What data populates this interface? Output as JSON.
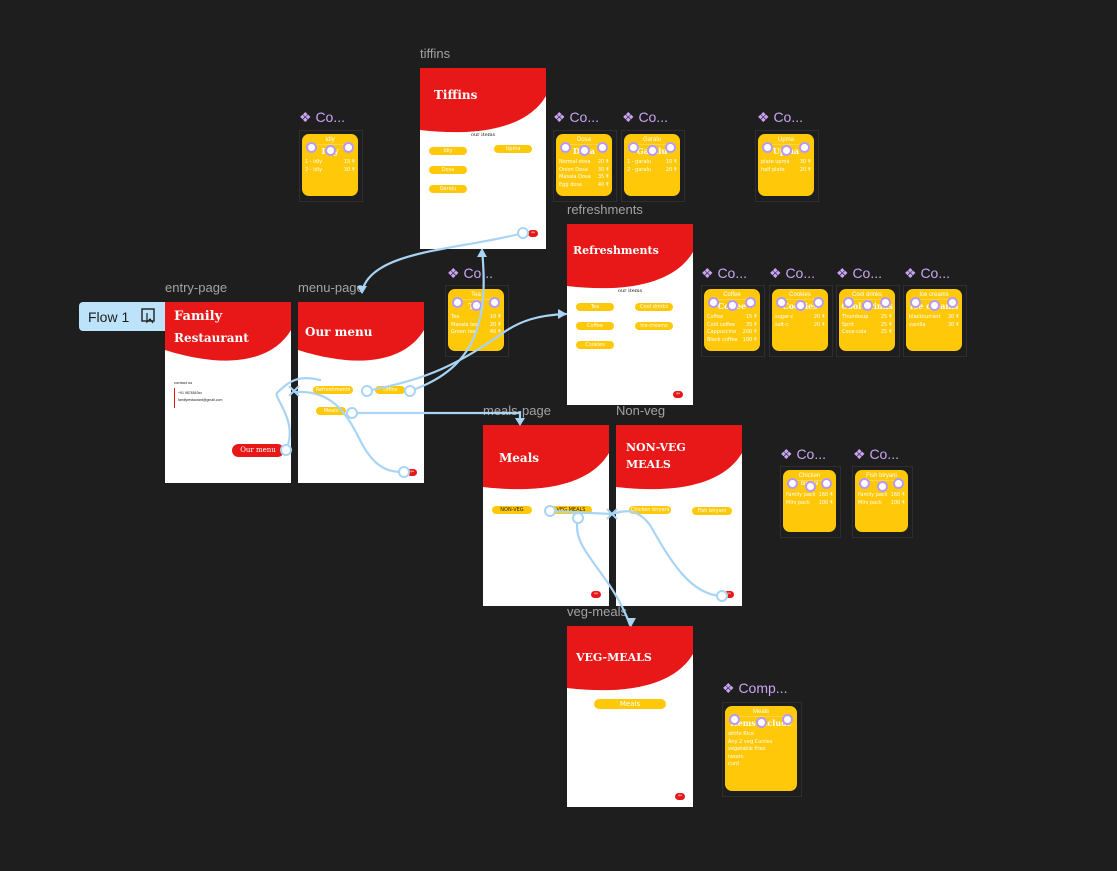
{
  "flow": {
    "label": "Flow 1"
  },
  "frame_labels": {
    "tiffins": "tiffins",
    "refreshments": "refreshments",
    "entry": "entry-page",
    "menu": "menu-page",
    "meals": "meals-page",
    "nonveg": "Non-veg",
    "veg": "veg-meals"
  },
  "entry": {
    "title_line1": "Family",
    "title_line2": "Restaurant",
    "contact_heading": "contact us",
    "phone": "+91 9876543xx",
    "email": "familyrestaurant@gmail.com",
    "menu_button": "Our menu"
  },
  "menu": {
    "title": "Our menu",
    "items": [
      "Refreshments",
      "Tiffins",
      "Meals"
    ]
  },
  "tiffins": {
    "title": "Tiffins",
    "subtitle": "our items",
    "items": [
      "Idly",
      "Upma",
      "Dosa",
      "Garalu"
    ]
  },
  "refreshments": {
    "title": "Refreshments",
    "subtitle": "our items",
    "items": [
      "Tea",
      "Cool drinks",
      "Coffee",
      "Ice-creams",
      "Cookies"
    ]
  },
  "meals": {
    "title": "Meals",
    "items": [
      "NON-VEG",
      "VEG MEALS"
    ]
  },
  "nonveg": {
    "title_line1": "NON-VEG",
    "title_line2": "MEALS",
    "items": [
      "Chicken biryani",
      "Fish biryani"
    ]
  },
  "veg": {
    "title": "VEG-MEALS",
    "item": "Meals"
  },
  "component_labels": {
    "short": "❖ Co...",
    "long": "❖ Comp..."
  },
  "components": {
    "idly": {
      "tab": "Idly",
      "title": "Idly",
      "rows": [
        [
          "1 - idly",
          "15 ₹"
        ],
        [
          "2 - idly",
          "30 ₹"
        ]
      ]
    },
    "dosa": {
      "tab": "Dosa",
      "title": "Dosa",
      "rows": [
        [
          "Normal dosa",
          "20 ₹"
        ],
        [
          "Onion Dosa",
          "30 ₹"
        ],
        [
          "Masala Dosa",
          "35 ₹"
        ],
        [
          "Egg dosa",
          "40 ₹"
        ]
      ]
    },
    "garalu": {
      "tab": "Garalu",
      "title": "Garalu",
      "rows": [
        [
          "1 - garalu",
          "10 ₹"
        ],
        [
          "2 - garalu",
          "20 ₹"
        ]
      ]
    },
    "upma": {
      "tab": "Upma",
      "title": "Upma",
      "rows": [
        [
          "plate upma",
          "30 ₹"
        ],
        [
          "half plate",
          "20 ₹"
        ]
      ]
    },
    "tea": {
      "tab": "Tea",
      "title": "Tea",
      "rows": [
        [
          "Tea",
          "10 ₹"
        ],
        [
          "Masala tea",
          "20 ₹"
        ],
        [
          "Green tea",
          "40 ₹"
        ]
      ]
    },
    "coffee": {
      "tab": "Coffee",
      "title": "Coffee",
      "rows": [
        [
          "Coffee",
          "15 ₹"
        ],
        [
          "Cold coffee",
          "35 ₹"
        ],
        [
          "Cappuccino",
          "200 ₹"
        ],
        [
          "Black coffee",
          "100 ₹"
        ]
      ]
    },
    "cookies": {
      "tab": "Cookies",
      "title": "Cookies",
      "rows": [
        [
          "sugar-c",
          "20 ₹"
        ],
        [
          "salt-c",
          "20 ₹"
        ]
      ]
    },
    "cooldrinks": {
      "tab": "Cool drinks",
      "title": "Cool drinks",
      "rows": [
        [
          "Thumbsup",
          "25 ₹"
        ],
        [
          "Sprit",
          "25 ₹"
        ],
        [
          "Coca-cola",
          "25 ₹"
        ]
      ]
    },
    "icecreams": {
      "tab": "Ice creams",
      "title": "Ice creams",
      "rows": [
        [
          "blackcurrant",
          "30 ₹"
        ],
        [
          "vanilla",
          "30 ₹"
        ]
      ]
    },
    "chicken": {
      "tab": "Chicken biryani",
      "title": "",
      "rows": [
        [
          "Family pack",
          "160 ₹"
        ],
        [
          "Mini pack",
          "100 ₹"
        ]
      ]
    },
    "fish": {
      "tab": "Fish biryani",
      "title": "",
      "rows": [
        [
          "Family pack",
          "160 ₹"
        ],
        [
          "Mini pack",
          "100 ₹"
        ]
      ]
    },
    "vegmeals": {
      "tab": "Meals",
      "title": "Items include",
      "rows": [
        [
          "white Rice",
          ""
        ],
        [
          "Any 2 veg Curries",
          ""
        ],
        [
          "vegetable fries",
          ""
        ],
        [
          "rasam",
          ""
        ],
        [
          "curd",
          ""
        ]
      ]
    }
  },
  "colors": {
    "red": "#e81818",
    "yellow": "#ffc90a",
    "flow": "#a8d4f5",
    "component": "#c9a4f4",
    "canvas": "#1e1e1e"
  }
}
